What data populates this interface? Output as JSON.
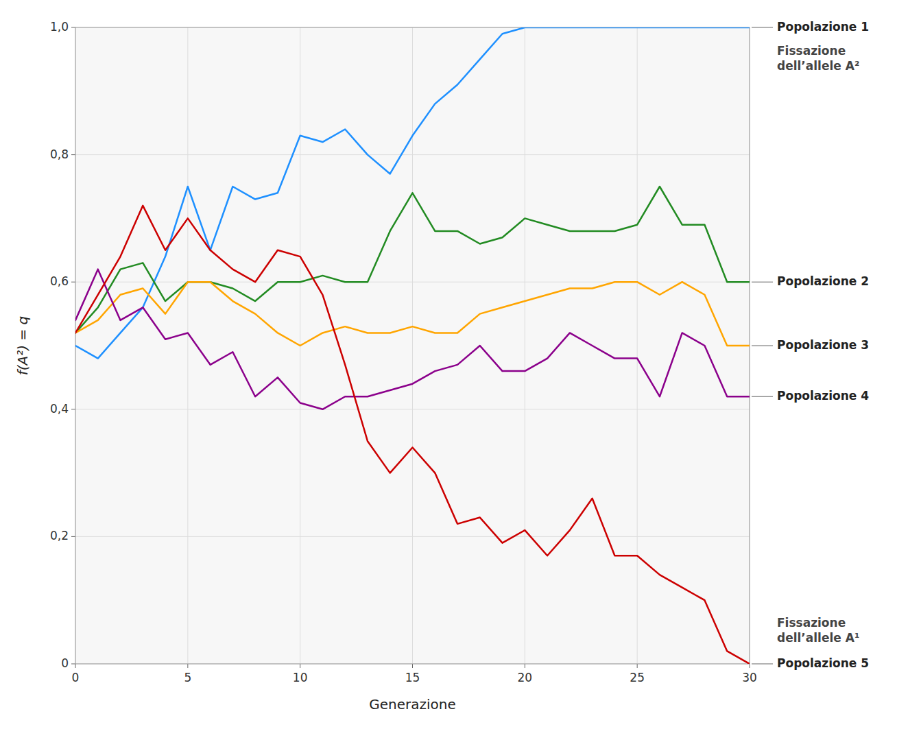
{
  "chart_data": {
    "type": "line",
    "xlabel": "Generazione",
    "ylabel": "f(A²) = q",
    "x": [
      0,
      1,
      2,
      3,
      4,
      5,
      6,
      7,
      8,
      9,
      10,
      11,
      12,
      13,
      14,
      15,
      16,
      17,
      18,
      19,
      20,
      21,
      22,
      23,
      24,
      25,
      26,
      27,
      28,
      29,
      30
    ],
    "series": [
      {
        "name": "Popolazione 1",
        "color": "#1E90FF",
        "values": [
          0.5,
          0.48,
          0.52,
          0.56,
          0.64,
          0.75,
          0.65,
          0.75,
          0.73,
          0.74,
          0.83,
          0.82,
          0.84,
          0.8,
          0.77,
          0.83,
          0.88,
          0.91,
          0.95,
          0.99,
          1.0,
          1.0,
          1.0,
          1.0,
          1.0,
          1.0,
          1.0,
          1.0,
          1.0,
          1.0,
          1.0
        ]
      },
      {
        "name": "Popolazione 2",
        "color": "#228B22",
        "values": [
          0.52,
          0.56,
          0.62,
          0.63,
          0.57,
          0.6,
          0.6,
          0.59,
          0.57,
          0.6,
          0.6,
          0.61,
          0.6,
          0.6,
          0.68,
          0.74,
          0.68,
          0.68,
          0.66,
          0.67,
          0.7,
          0.69,
          0.68,
          0.68,
          0.68,
          0.69,
          0.75,
          0.69,
          0.69,
          0.6,
          0.6
        ]
      },
      {
        "name": "Popolazione 3",
        "color": "#FFA500",
        "values": [
          0.52,
          0.54,
          0.58,
          0.59,
          0.55,
          0.6,
          0.6,
          0.57,
          0.55,
          0.52,
          0.5,
          0.52,
          0.53,
          0.52,
          0.52,
          0.53,
          0.52,
          0.52,
          0.55,
          0.56,
          0.57,
          0.58,
          0.59,
          0.59,
          0.6,
          0.6,
          0.58,
          0.6,
          0.58,
          0.5,
          0.5
        ]
      },
      {
        "name": "Popolazione 4",
        "color": "#8B008B",
        "values": [
          0.54,
          0.62,
          0.54,
          0.56,
          0.51,
          0.52,
          0.47,
          0.49,
          0.42,
          0.45,
          0.41,
          0.4,
          0.42,
          0.42,
          0.43,
          0.44,
          0.46,
          0.47,
          0.5,
          0.46,
          0.46,
          0.48,
          0.52,
          0.5,
          0.48,
          0.48,
          0.42,
          0.52,
          0.5,
          0.42,
          0.42
        ]
      },
      {
        "name": "Popolazione 5",
        "color": "#CC0000",
        "values": [
          0.52,
          0.58,
          0.64,
          0.72,
          0.65,
          0.7,
          0.65,
          0.62,
          0.6,
          0.65,
          0.64,
          0.58,
          0.47,
          0.35,
          0.3,
          0.34,
          0.3,
          0.22,
          0.23,
          0.19,
          0.21,
          0.17,
          0.21,
          0.26,
          0.17,
          0.17,
          0.14,
          0.12,
          0.1,
          0.02,
          0.0
        ]
      }
    ],
    "annotations": [
      "Fissazione\ndell’allele A²",
      "Fissazione\ndell’allele A¹"
    ],
    "xlim": [
      0,
      30
    ],
    "ylim": [
      0,
      1.0
    ],
    "xticks": [
      0,
      5,
      10,
      15,
      20,
      25,
      30
    ],
    "yticks": [
      0,
      {
        "value": 0.2,
        "label": "0,2"
      },
      {
        "value": 0.4,
        "label": "0,4"
      },
      {
        "value": 0.6,
        "label": "0,6"
      },
      {
        "value": 0.8,
        "label": "0,8"
      },
      {
        "value": 1.0,
        "label": "1,0"
      }
    ],
    "grid": true
  }
}
